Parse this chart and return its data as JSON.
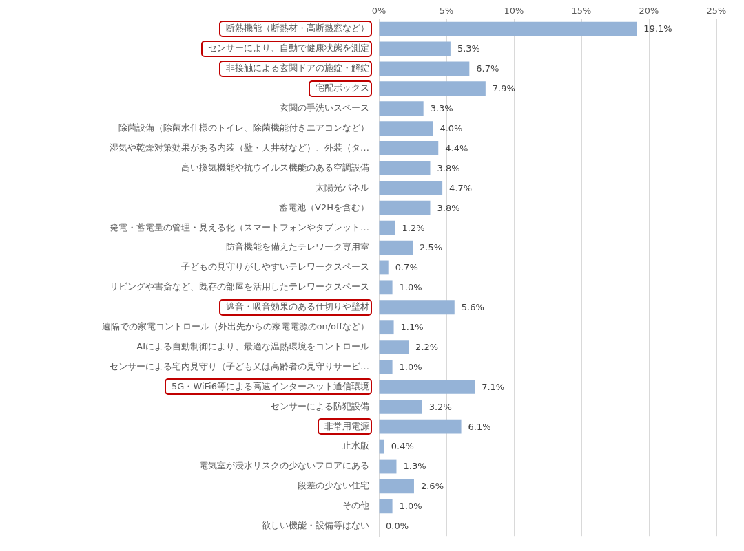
{
  "chart_data": {
    "type": "bar",
    "orientation": "horizontal",
    "categories": [
      "断熱機能（断熱材・高断熱窓など）",
      "センサーにより、自動で健康状態を測定",
      "非接触による玄関ドアの施錠・解錠",
      "宅配ボックス",
      "玄関の手洗いスペース",
      "除菌設備（除菌水仕様のトイレ、除菌機能付きエアコンなど）",
      "湿気や乾燥対策効果がある内装（壁・天井材など）、外装（タ…",
      "高い換気機能や抗ウイルス機能のある空調設備",
      "太陽光パネル",
      "蓄電池（V2Hを含む）",
      "発電・蓄電量の管理・見える化（スマートフォンやタブレット…",
      "防音機能を備えたテレワーク専用室",
      "子どもの見守りがしやすいテレワークスペース",
      "リビングや書斎など、既存の部屋を活用したテレワークスペース",
      "遮音・吸音効果のある仕切りや壁材",
      "遠隔での家電コントロール（外出先からの家電電源のon/offなど）",
      "AIによる自動制御により、最適な温熱環境をコントロール",
      "センサーによる宅内見守り（子ども又は高齢者の見守りサービ…",
      "5G・WiFi6等による高速インターネット通信環境",
      "センサーによる防犯設備",
      "非常用電源",
      "止水版",
      "電気室が浸水リスクの少ないフロアにある",
      "段差の少ない住宅",
      "その他",
      "欲しい機能・設備等はない"
    ],
    "values": [
      19.1,
      5.3,
      6.7,
      7.9,
      3.3,
      4.0,
      4.4,
      3.8,
      4.7,
      3.8,
      1.2,
      2.5,
      0.7,
      1.0,
      5.6,
      1.1,
      2.2,
      1.0,
      7.1,
      3.2,
      6.1,
      0.4,
      1.3,
      2.6,
      1.0,
      0.0
    ],
    "value_labels": [
      "19.1%",
      "5.3%",
      "6.7%",
      "7.9%",
      "3.3%",
      "4.0%",
      "4.4%",
      "3.8%",
      "4.7%",
      "3.8%",
      "1.2%",
      "2.5%",
      "0.7%",
      "1.0%",
      "5.6%",
      "1.1%",
      "2.2%",
      "1.0%",
      "7.1%",
      "3.2%",
      "6.1%",
      "0.4%",
      "1.3%",
      "2.6%",
      "1.0%",
      "0.0%"
    ],
    "color": "#95b3d7",
    "xlim": [
      0,
      25
    ],
    "xticks": [
      {
        "value": 0,
        "label": "0%"
      },
      {
        "value": 5,
        "label": "5%"
      },
      {
        "value": 10,
        "label": "10%"
      },
      {
        "value": 15,
        "label": "15%"
      },
      {
        "value": 20,
        "label": "20%"
      },
      {
        "value": 25,
        "label": "25%"
      }
    ],
    "grid": "x",
    "legend": false
  }
}
